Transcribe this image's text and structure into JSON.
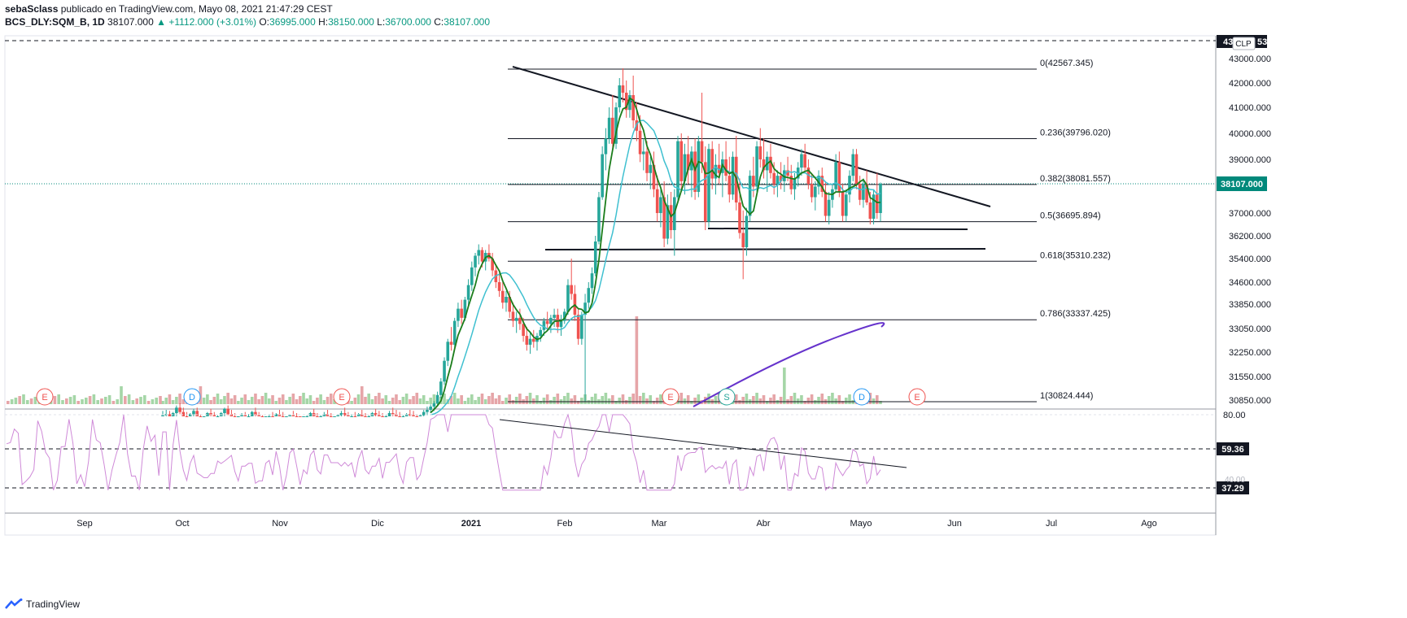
{
  "header": {
    "author": "sebaSclass",
    "published": "publicado en TradingView.com, Mayo 08, 2021 21:47:29 CEST",
    "symbol": "BCS_DLY:SQM_B, 1D",
    "last": "38107.000",
    "change": "+1112.000 (+3.01%)",
    "o_label": "O:",
    "o_value": "36995.000",
    "h_label": "H:",
    "h_value": "38150.000",
    "l_label": "L:",
    "l_value": "36700.000",
    "c_label": "C:",
    "c_value": "38107.000"
  },
  "footer": {
    "brand": "TradingView"
  },
  "colors": {
    "up": "#26a69a",
    "down": "#ef5350",
    "vol_up": "#a5d6a7",
    "vol_down": "#e6a5a8",
    "ma_fast": "#1b7d1b",
    "ma_slow": "#3fc0d0",
    "rsi": "#cf8ad8",
    "purple": "#6633cc",
    "fib": "#131722",
    "current": "#00897b"
  },
  "chart_data": {
    "type": "candlestick",
    "price_axis": {
      "ticks": [
        "43000.000",
        "42000.000",
        "41000.000",
        "40000.000",
        "39000.000",
        "38107.000",
        "37000.000",
        "36200.000",
        "35400.000",
        "34600.000",
        "33850.000",
        "33050.000",
        "32250.000",
        "31550.000",
        "30850.000"
      ],
      "top_label": "43",
      "top_label_suffix": "53",
      "currency": "CLP",
      "current_price": "38107.000"
    },
    "time_axis": [
      "Sep",
      "Oct",
      "Nov",
      "Dic",
      "2021",
      "Feb",
      "Mar",
      "Abr",
      "Mayo",
      "Jun",
      "Jul",
      "Ago"
    ],
    "fibonacci": [
      {
        "label": "0(42567.345)",
        "price": 42567.345
      },
      {
        "label": "0.236(39796.020)",
        "price": 39796.02
      },
      {
        "label": "0.382(38081.557)",
        "price": 38081.557
      },
      {
        "label": "0.5(36695.894)",
        "price": 36695.894
      },
      {
        "label": "0.618(35310.232)",
        "price": 35310.232
      },
      {
        "label": "0.786(33337.425)",
        "price": 33337.425
      },
      {
        "label": "1(30824.444)",
        "price": 30824.444
      }
    ],
    "events": [
      {
        "letter": "E",
        "kind": "earnings",
        "date": "Aug"
      },
      {
        "letter": "D",
        "kind": "dividend",
        "date": "Sep"
      },
      {
        "letter": "E",
        "kind": "earnings",
        "date": "Nov"
      },
      {
        "letter": "E",
        "kind": "earnings",
        "date": "Mar"
      },
      {
        "letter": "S",
        "kind": "split",
        "date": "Mar"
      },
      {
        "letter": "D",
        "kind": "dividend",
        "date": "May"
      },
      {
        "letter": "E",
        "kind": "earnings",
        "date": "May"
      }
    ],
    "rsi": {
      "ticks": [
        "80.00"
      ],
      "levels": [
        {
          "label": "59.36",
          "value": 59.36
        },
        {
          "label": "37.29",
          "value": 37.29
        }
      ],
      "hidden_label": "40.00"
    },
    "candles": [
      [
        30100,
        30350,
        29900,
        30150
      ],
      [
        30150,
        30400,
        29950,
        30200
      ],
      [
        30200,
        30350,
        29900,
        30050
      ],
      [
        30050,
        30300,
        29850,
        30250
      ],
      [
        30250,
        30600,
        30100,
        30500
      ],
      [
        30500,
        30700,
        30200,
        30300
      ],
      [
        30300,
        30500,
        30000,
        30100
      ],
      [
        30100,
        30300,
        29800,
        29950
      ],
      [
        29950,
        30250,
        29800,
        30200
      ],
      [
        30200,
        30450,
        30050,
        30350
      ],
      [
        30350,
        30500,
        30000,
        30050
      ],
      [
        30050,
        30200,
        29700,
        29850
      ],
      [
        29850,
        30100,
        29700,
        30000
      ],
      [
        30000,
        30300,
        29850,
        30250
      ],
      [
        30250,
        30450,
        30050,
        30150
      ],
      [
        30150,
        30300,
        29850,
        29950
      ],
      [
        29950,
        30150,
        29750,
        30050
      ],
      [
        30050,
        30300,
        29900,
        30250
      ],
      [
        30250,
        30500,
        30100,
        30450
      ],
      [
        30450,
        30600,
        30150,
        30200
      ],
      [
        30200,
        30400,
        29950,
        30050
      ],
      [
        30050,
        30250,
        29800,
        29900
      ],
      [
        29900,
        30100,
        29700,
        30000
      ],
      [
        30000,
        30250,
        29850,
        30150
      ],
      [
        30150,
        30300,
        29900,
        29950
      ],
      [
        29950,
        30200,
        29800,
        30100
      ],
      [
        30100,
        30350,
        29950,
        30300
      ],
      [
        30300,
        30500,
        30050,
        30150
      ],
      [
        30150,
        30300,
        29900,
        29950
      ],
      [
        29950,
        30150,
        29700,
        29800
      ],
      [
        29800,
        30000,
        29600,
        29950
      ],
      [
        29950,
        30200,
        29800,
        30100
      ],
      [
        30100,
        30300,
        29900,
        30000
      ],
      [
        30000,
        30250,
        29850,
        30200
      ],
      [
        30200,
        30400,
        30000,
        30100
      ],
      [
        30100,
        30300,
        29850,
        29900
      ],
      [
        29900,
        30100,
        29700,
        30000
      ],
      [
        30000,
        30200,
        29850,
        30150
      ],
      [
        30150,
        30350,
        30000,
        30050
      ],
      [
        30050,
        30250,
        29850,
        29950
      ],
      [
        29950,
        30100,
        29700,
        29850
      ],
      [
        29850,
        30050,
        29650,
        29950
      ],
      [
        29950,
        30150,
        29800,
        30100
      ],
      [
        30100,
        30300,
        29950,
        30250
      ],
      [
        30250,
        30450,
        30050,
        30100
      ],
      [
        30100,
        30250,
        29900,
        29950
      ],
      [
        29950,
        30150,
        29750,
        30050
      ],
      [
        30050,
        30300,
        29900,
        30200
      ],
      [
        30200,
        30400,
        30050,
        30100
      ],
      [
        30100,
        30250,
        29850,
        29900
      ],
      [
        29900,
        30100,
        29700,
        30000
      ],
      [
        30000,
        30200,
        29850,
        30150
      ],
      [
        30150,
        30350,
        30000,
        30250
      ],
      [
        30250,
        30500,
        30100,
        30150
      ],
      [
        30150,
        30300,
        29900,
        29950
      ],
      [
        29950,
        30200,
        29800,
        30100
      ],
      [
        30100,
        30300,
        29950,
        30050
      ],
      [
        30050,
        30250,
        29900,
        30200
      ],
      [
        30200,
        30400,
        30050,
        30100
      ],
      [
        30100,
        30250,
        29850,
        29950
      ],
      [
        29950,
        30150,
        29750,
        30050
      ],
      [
        30050,
        30300,
        29900,
        30250
      ],
      [
        30250,
        30450,
        30100,
        30150
      ],
      [
        30150,
        30350,
        29950,
        30050
      ],
      [
        30050,
        30250,
        29850,
        29950
      ],
      [
        29950,
        30150,
        29750,
        30100
      ],
      [
        30100,
        30350,
        29950,
        30250
      ],
      [
        30250,
        30500,
        30100,
        30200
      ],
      [
        30200,
        30400,
        30000,
        30100
      ],
      [
        30100,
        30300,
        29900,
        29950
      ],
      [
        29950,
        30150,
        29800,
        30050
      ],
      [
        30050,
        30250,
        29900,
        30200
      ],
      [
        30200,
        30400,
        30050,
        30150
      ],
      [
        30150,
        30350,
        29950,
        30050
      ],
      [
        30050,
        30200,
        29850,
        29950
      ],
      [
        29950,
        30200,
        29800,
        30150
      ],
      [
        30150,
        30400,
        30000,
        30300
      ],
      [
        30300,
        30550,
        30150,
        30400
      ],
      [
        30400,
        30650,
        30250,
        30550
      ],
      [
        30550,
        30800,
        30350,
        30700
      ],
      [
        30700,
        31100,
        30600,
        31000
      ],
      [
        31000,
        31500,
        30900,
        31400
      ],
      [
        31400,
        32100,
        31300,
        32000
      ],
      [
        32000,
        32700,
        31850,
        32600
      ],
      [
        32600,
        33100,
        32300,
        32500
      ],
      [
        32500,
        33400,
        32400,
        33300
      ],
      [
        33300,
        33900,
        33100,
        33700
      ],
      [
        33700,
        34000,
        33200,
        33400
      ],
      [
        33400,
        34100,
        33300,
        34000
      ],
      [
        34000,
        34700,
        33800,
        34500
      ],
      [
        34500,
        35300,
        34300,
        35100
      ],
      [
        35100,
        35600,
        34800,
        35500
      ],
      [
        35500,
        35900,
        35200,
        35700
      ],
      [
        35700,
        35800,
        35100,
        35300
      ],
      [
        35300,
        35700,
        35000,
        35600
      ],
      [
        35600,
        35900,
        35300,
        35400
      ],
      [
        35400,
        35600,
        34800,
        35000
      ],
      [
        35000,
        35200,
        34400,
        34600
      ],
      [
        34600,
        34900,
        34100,
        34300
      ],
      [
        34300,
        34600,
        33700,
        33900
      ],
      [
        33900,
        34300,
        33600,
        34100
      ],
      [
        34100,
        34300,
        33400,
        33600
      ],
      [
        33600,
        33900,
        33100,
        33300
      ],
      [
        33300,
        33600,
        32900,
        33400
      ],
      [
        33400,
        33700,
        33000,
        33200
      ],
      [
        33200,
        33400,
        32600,
        32800
      ],
      [
        32800,
        33100,
        32300,
        32500
      ],
      [
        32500,
        32900,
        32200,
        32700
      ],
      [
        32700,
        33000,
        32400,
        32600
      ],
      [
        32600,
        32900,
        32300,
        32800
      ],
      [
        32800,
        33100,
        32600,
        33000
      ],
      [
        33000,
        33400,
        32800,
        33300
      ],
      [
        33300,
        33600,
        33000,
        33200
      ],
      [
        33200,
        33500,
        32900,
        33400
      ],
      [
        33400,
        33700,
        33100,
        33500
      ],
      [
        33500,
        33700,
        32900,
        33100
      ],
      [
        33100,
        33500,
        32800,
        33300
      ],
      [
        33300,
        33700,
        33200,
        33600
      ],
      [
        33600,
        34700,
        33500,
        34500
      ],
      [
        34500,
        35400,
        34000,
        34200
      ],
      [
        34200,
        34500,
        33300,
        33500
      ],
      [
        33500,
        33700,
        32500,
        32700
      ],
      [
        32700,
        33600,
        32500,
        33500
      ],
      [
        33500,
        34200,
        30800,
        33900
      ],
      [
        33900,
        34600,
        33700,
        34400
      ],
      [
        34400,
        35100,
        34200,
        34900
      ],
      [
        34900,
        36200,
        34800,
        36000
      ],
      [
        36000,
        37800,
        35900,
        37600
      ],
      [
        37600,
        39500,
        37500,
        39200
      ],
      [
        39200,
        40200,
        38600,
        39800
      ],
      [
        39800,
        41000,
        39600,
        40600
      ],
      [
        40600,
        41500,
        39400,
        39600
      ],
      [
        39600,
        41200,
        39400,
        41000
      ],
      [
        41000,
        42200,
        40800,
        41900
      ],
      [
        41900,
        42600,
        41200,
        41600
      ],
      [
        41600,
        42100,
        40600,
        40900
      ],
      [
        40900,
        41700,
        40600,
        41500
      ],
      [
        41500,
        42300,
        40200,
        40500
      ],
      [
        40500,
        41200,
        39700,
        40100
      ],
      [
        40100,
        40700,
        38900,
        39200
      ],
      [
        39200,
        39800,
        38600,
        39300
      ],
      [
        39300,
        39700,
        38200,
        38500
      ],
      [
        38500,
        39100,
        37900,
        38800
      ],
      [
        38800,
        39300,
        37600,
        37900
      ],
      [
        37900,
        38400,
        36700,
        37000
      ],
      [
        37000,
        37900,
        36500,
        37600
      ],
      [
        37600,
        38200,
        35800,
        36100
      ],
      [
        36100,
        37700,
        35900,
        37300
      ],
      [
        37300,
        37800,
        36100,
        36400
      ],
      [
        36400,
        37900,
        35500,
        37600
      ],
      [
        37600,
        39900,
        37400,
        39700
      ],
      [
        39700,
        40000,
        37800,
        38200
      ],
      [
        38200,
        39600,
        37700,
        39200
      ],
      [
        39200,
        39900,
        38100,
        38600
      ],
      [
        38600,
        39500,
        37600,
        39300
      ],
      [
        39300,
        39800,
        37500,
        37800
      ],
      [
        37800,
        39900,
        37600,
        39700
      ],
      [
        39700,
        41600,
        38500,
        38900
      ],
      [
        38900,
        39500,
        36400,
        36700
      ],
      [
        36700,
        39600,
        36500,
        39400
      ],
      [
        39400,
        39700,
        37900,
        38300
      ],
      [
        38300,
        39200,
        37700,
        38800
      ],
      [
        38800,
        39600,
        38100,
        38500
      ],
      [
        38500,
        39300,
        37600,
        39000
      ],
      [
        39000,
        39700,
        38200,
        38400
      ],
      [
        38400,
        39100,
        37400,
        37700
      ],
      [
        37700,
        39300,
        37500,
        39100
      ],
      [
        39100,
        39900,
        37100,
        37400
      ],
      [
        37400,
        38300,
        36100,
        36300
      ],
      [
        36300,
        37100,
        34700,
        35800
      ],
      [
        35800,
        37200,
        35500,
        36900
      ],
      [
        36900,
        38600,
        36700,
        38400
      ],
      [
        38400,
        39100,
        37600,
        38000
      ],
      [
        38000,
        39700,
        37800,
        39500
      ],
      [
        39500,
        40200,
        38700,
        39000
      ],
      [
        39000,
        39800,
        38300,
        38600
      ],
      [
        38600,
        39300,
        37800,
        39100
      ],
      [
        39100,
        39600,
        38300,
        38500
      ],
      [
        38500,
        38900,
        37700,
        38100
      ],
      [
        38100,
        38600,
        37600,
        38400
      ],
      [
        38400,
        38900,
        37900,
        38200
      ],
      [
        38200,
        38800,
        37800,
        38600
      ],
      [
        38600,
        39100,
        38200,
        38400
      ],
      [
        38400,
        38800,
        37700,
        37900
      ],
      [
        37900,
        38500,
        37500,
        38300
      ],
      [
        38300,
        38900,
        38000,
        38700
      ],
      [
        38700,
        39400,
        38400,
        39200
      ],
      [
        39200,
        39600,
        38500,
        38700
      ],
      [
        38700,
        39000,
        37900,
        38100
      ],
      [
        38100,
        38500,
        37400,
        37600
      ],
      [
        37600,
        38200,
        37100,
        38000
      ],
      [
        38000,
        38600,
        37700,
        38400
      ],
      [
        38400,
        38700,
        37600,
        37800
      ],
      [
        37800,
        38200,
        36700,
        36900
      ],
      [
        36900,
        37800,
        36600,
        37500
      ],
      [
        37500,
        38100,
        37200,
        37900
      ],
      [
        37900,
        39200,
        37800,
        38900
      ],
      [
        38900,
        39300,
        37600,
        37800
      ],
      [
        37800,
        38100,
        36700,
        36900
      ],
      [
        36900,
        37900,
        36700,
        37700
      ],
      [
        37700,
        38600,
        37400,
        38400
      ],
      [
        38400,
        39400,
        38200,
        39200
      ],
      [
        39200,
        39400,
        37900,
        38100
      ],
      [
        38100,
        38400,
        37300,
        37500
      ],
      [
        37500,
        38300,
        37200,
        38100
      ],
      [
        38100,
        38600,
        37300,
        37400
      ],
      [
        37400,
        37800,
        36600,
        36800
      ],
      [
        36800,
        37900,
        36600,
        37700
      ],
      [
        37700,
        38500,
        36800,
        37000
      ],
      [
        37000,
        38150,
        36700,
        38107
      ]
    ]
  }
}
